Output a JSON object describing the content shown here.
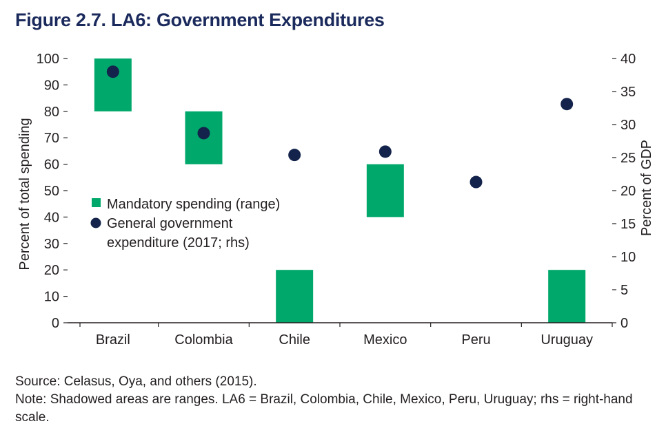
{
  "figure": {
    "title": "Figure 2.7. LA6: Government Expenditures",
    "source": "Source: Celasus, Oya, and others (2015).",
    "note": "Note: Shadowed areas are ranges. LA6 = Brazil, Colombia, Chile, Mexico, Peru, Uruguay; rhs = right-hand scale."
  },
  "chart_data": {
    "type": "bar",
    "categories": [
      "Brazil",
      "Colombia",
      "Chile",
      "Mexico",
      "Peru",
      "Uruguay"
    ],
    "ylabel": "Percent of total spending",
    "y2label": "Percent of GDP",
    "ylim": [
      0,
      100
    ],
    "y2lim": [
      0,
      40
    ],
    "yticks": [
      0,
      10,
      20,
      30,
      40,
      50,
      60,
      70,
      80,
      90,
      100
    ],
    "y2ticks": [
      0,
      5,
      10,
      15,
      20,
      25,
      30,
      35,
      40
    ],
    "legend_position": "center-left",
    "grid": false,
    "series": [
      {
        "name": "Mandatory spending (range)",
        "kind": "range",
        "axis": "left",
        "color": "#00a86b",
        "values": [
          [
            80,
            100
          ],
          [
            60,
            80
          ],
          [
            0,
            20
          ],
          [
            40,
            60
          ],
          null,
          [
            0,
            20
          ]
        ]
      },
      {
        "name": "General government expenditure (2017; rhs)",
        "kind": "point",
        "axis": "right",
        "color": "#13234b",
        "values": [
          38,
          28.7,
          25.4,
          25.9,
          21.3,
          33.1
        ]
      }
    ]
  }
}
